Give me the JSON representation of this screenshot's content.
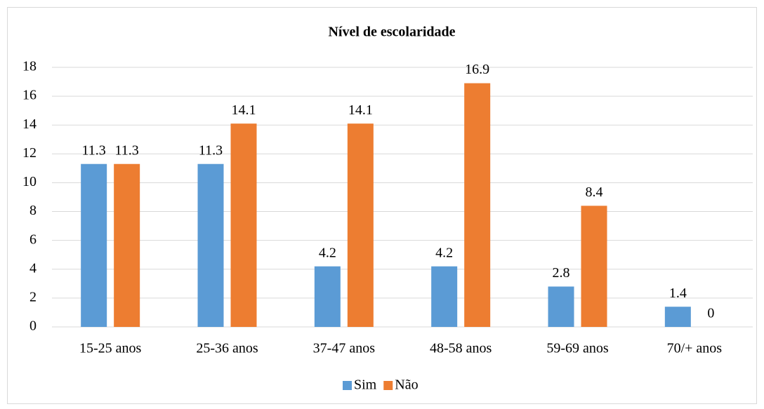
{
  "chart_data": {
    "type": "bar",
    "title": "Nível de escolaridade",
    "categories": [
      "15-25 anos",
      "25-36 anos",
      "37-47 anos",
      "48-58 anos",
      "59-69 anos",
      "70/+ anos"
    ],
    "series": [
      {
        "name": "Sim",
        "color": "#5b9bd5",
        "values": [
          11.3,
          11.3,
          4.2,
          4.2,
          2.8,
          1.4
        ]
      },
      {
        "name": "Não",
        "color": "#ed7d31",
        "values": [
          11.3,
          14.1,
          14.1,
          16.9,
          8.4,
          0
        ]
      }
    ],
    "ylim": [
      0,
      18
    ],
    "yticks": [
      0,
      2,
      4,
      6,
      8,
      10,
      12,
      14,
      16,
      18
    ],
    "grid": true,
    "legend": "bottom"
  }
}
